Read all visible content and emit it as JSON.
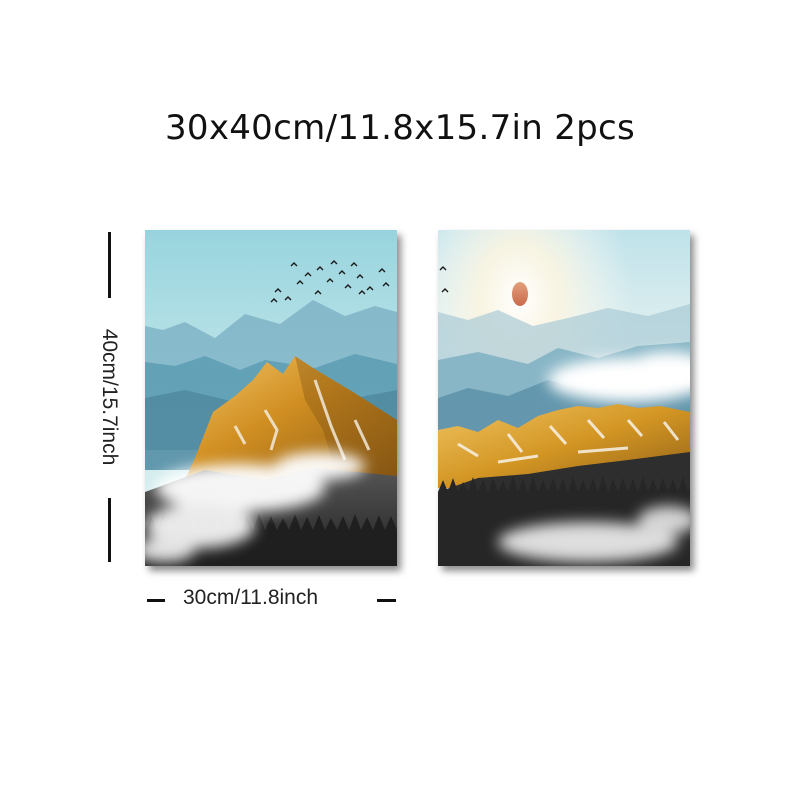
{
  "title": "30x40cm/11.8x15.7in 2pcs",
  "dimensions": {
    "height_label": "40cm/15.7inch",
    "width_label": "30cm/11.8inch"
  },
  "panels": [
    {
      "name": "left-panel",
      "description": "golden peak with birds"
    },
    {
      "name": "right-panel",
      "description": "golden range with sun"
    }
  ],
  "colors": {
    "sky": "#a8dbe2",
    "gold": "#d79a2a",
    "forest": "#3a3a3a"
  }
}
